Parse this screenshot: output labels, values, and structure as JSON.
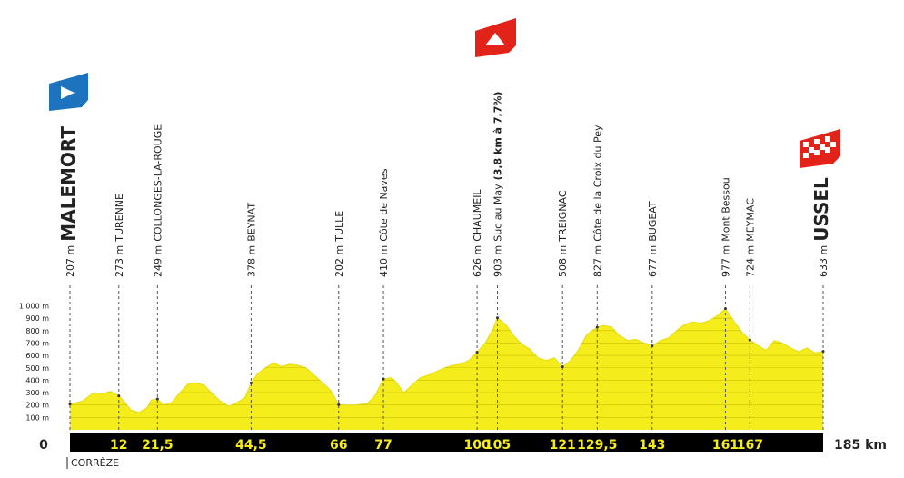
{
  "chart_data": {
    "type": "area",
    "x": [
      0,
      3,
      5,
      6,
      8,
      10,
      12,
      13,
      15,
      17,
      19,
      20,
      21.5,
      23,
      25,
      27,
      29,
      31,
      33,
      35,
      37,
      39,
      41,
      43,
      44.5,
      46,
      48,
      50,
      52,
      54,
      56,
      58,
      60,
      62,
      64,
      66,
      68,
      70,
      73,
      75,
      77,
      79,
      80,
      82,
      84,
      86,
      88,
      90,
      92,
      94,
      96,
      98,
      100,
      102,
      104,
      105,
      107,
      109,
      111,
      113,
      115,
      117,
      119,
      121,
      123,
      125,
      127,
      129.5,
      131,
      133,
      135,
      137,
      139,
      141,
      143,
      145,
      147,
      149,
      151,
      153,
      155,
      157,
      159,
      161,
      163,
      165,
      167,
      169,
      171,
      173,
      175,
      177,
      179,
      181,
      183,
      185
    ],
    "values": [
      207,
      230,
      280,
      300,
      290,
      310,
      273,
      240,
      160,
      140,
      180,
      240,
      249,
      200,
      220,
      300,
      370,
      380,
      360,
      290,
      230,
      190,
      220,
      260,
      378,
      450,
      500,
      540,
      510,
      530,
      520,
      500,
      440,
      380,
      320,
      202,
      200,
      200,
      210,
      280,
      410,
      420,
      390,
      300,
      360,
      420,
      440,
      470,
      500,
      520,
      530,
      560,
      626,
      700,
      820,
      903,
      850,
      760,
      690,
      650,
      580,
      560,
      580,
      508,
      560,
      650,
      770,
      827,
      840,
      830,
      760,
      720,
      730,
      700,
      677,
      720,
      740,
      800,
      850,
      870,
      860,
      880,
      920,
      977,
      880,
      790,
      724,
      680,
      640,
      720,
      700,
      660,
      630,
      660,
      620,
      633
    ],
    "color": "#f5ec1c",
    "xlim": [
      0,
      185
    ],
    "xticks": [
      0,
      12,
      {
        "value": 21.5,
        "label": "21,5"
      },
      {
        "value": 44.5,
        "label": "44,5"
      },
      66,
      77,
      100,
      105,
      121,
      {
        "value": 129.5,
        "label": "129,5"
      },
      143,
      161,
      167,
      {
        "value": 185,
        "label": "185 km"
      }
    ],
    "ylim": [
      0,
      1000
    ],
    "yticks": [
      {
        "value": 100,
        "label": "100 m"
      },
      {
        "value": 200,
        "label": "200 m"
      },
      {
        "value": 300,
        "label": "300 m"
      },
      {
        "value": 400,
        "label": "400 m"
      },
      {
        "value": 500,
        "label": "500 m"
      },
      {
        "value": 600,
        "label": "600 m"
      },
      {
        "value": 700,
        "label": "700 m"
      },
      {
        "value": 800,
        "label": "800 m"
      },
      {
        "value": 900,
        "label": "900 m"
      },
      {
        "value": 1000,
        "label": "1 000 m"
      }
    ],
    "grid": true,
    "waypoints": [
      {
        "elevation": 207,
        "elevation_label": "207 m",
        "name": "MALEMORT",
        "emphasis": true
      },
      {
        "elevation": 273,
        "elevation_label": "273 m",
        "name": "TURENNE"
      },
      {
        "elevation": 249,
        "elevation_label": "249 m",
        "name": "COLLONGES-LA-ROUGE"
      },
      {
        "elevation": 378,
        "elevation_label": "378 m",
        "name": "BEYNAT"
      },
      {
        "elevation": 202,
        "elevation_label": "202 m",
        "name": "TULLE"
      },
      {
        "elevation": 410,
        "elevation_label": "410 m",
        "name": "Côte de Naves"
      },
      {
        "elevation": 626,
        "elevation_label": "626 m",
        "name": "CHAUMEIL"
      },
      {
        "elevation": 903,
        "elevation_label": "903 m",
        "name": "Suc au May",
        "detail": "(3,8 km à 7,7%)"
      },
      {
        "elevation": 508,
        "elevation_label": "508 m",
        "name": "TREIGNAC"
      },
      {
        "elevation": 827,
        "elevation_label": "827 m",
        "name": "Côte de la Croix du Pey"
      },
      {
        "elevation": 677,
        "elevation_label": "677 m",
        "name": "BUGEAT"
      },
      {
        "elevation": 977,
        "elevation_label": "977 m",
        "name": "Mont Bessou"
      },
      {
        "elevation": 724,
        "elevation_label": "724 m",
        "name": "MEYMAC"
      },
      {
        "elevation": 633,
        "elevation_label": "633 m",
        "name": "USSEL",
        "emphasis": true
      }
    ],
    "department": "CORRÈZE"
  }
}
